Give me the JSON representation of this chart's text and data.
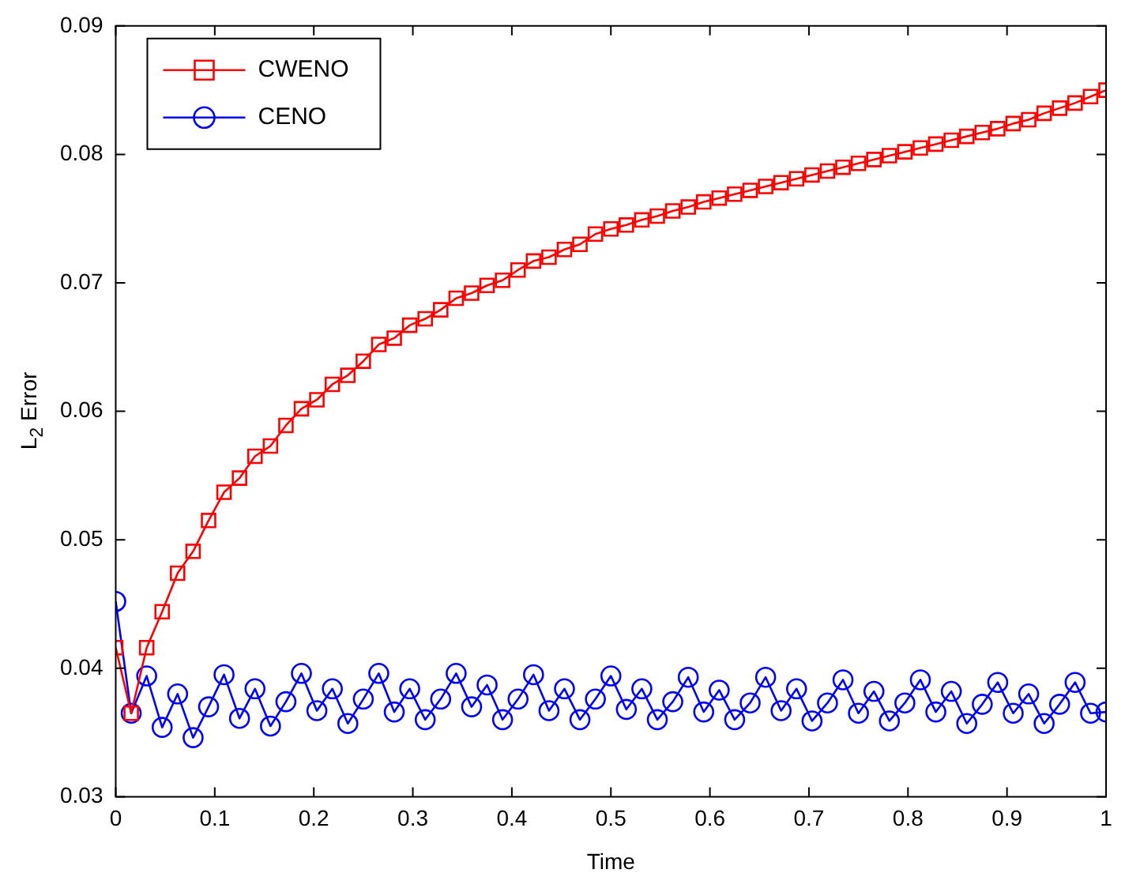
{
  "chart_data": {
    "type": "line",
    "xlabel": "Time",
    "ylabel": "L$_{2}$ Error",
    "x": [
      0,
      0.015625,
      0.03125,
      0.046875,
      0.0625,
      0.078125,
      0.09375,
      0.109375,
      0.125,
      0.140625,
      0.15625,
      0.171875,
      0.1875,
      0.203125,
      0.21875,
      0.234375,
      0.25,
      0.265625,
      0.28125,
      0.296875,
      0.3125,
      0.328125,
      0.34375,
      0.359375,
      0.375,
      0.390625,
      0.40625,
      0.421875,
      0.4375,
      0.453125,
      0.46875,
      0.484375,
      0.5,
      0.515625,
      0.53125,
      0.546875,
      0.5625,
      0.578125,
      0.59375,
      0.609375,
      0.625,
      0.640625,
      0.65625,
      0.671875,
      0.6875,
      0.703125,
      0.71875,
      0.734375,
      0.75,
      0.765625,
      0.78125,
      0.796875,
      0.8125,
      0.828125,
      0.84375,
      0.859375,
      0.875,
      0.890625,
      0.90625,
      0.921875,
      0.9375,
      0.953125,
      0.96875,
      0.984375,
      1
    ],
    "series": [
      {
        "name": "CWENO",
        "color": "#ff0000",
        "marker": "square",
        "values": [
          0.0416,
          0.0365,
          0.0416,
          0.0444,
          0.0474,
          0.0491,
          0.0515,
          0.0537,
          0.0548,
          0.0565,
          0.0573,
          0.0589,
          0.0602,
          0.0609,
          0.0621,
          0.0628,
          0.0639,
          0.0652,
          0.0657,
          0.0667,
          0.0672,
          0.0679,
          0.0688,
          0.0692,
          0.0698,
          0.0702,
          0.071,
          0.0717,
          0.072,
          0.0726,
          0.073,
          0.0738,
          0.0742,
          0.0745,
          0.0749,
          0.0752,
          0.0756,
          0.0759,
          0.0763,
          0.0766,
          0.0769,
          0.0772,
          0.0775,
          0.0778,
          0.0781,
          0.0784,
          0.0787,
          0.079,
          0.0793,
          0.0796,
          0.0799,
          0.0802,
          0.0805,
          0.0808,
          0.0811,
          0.0814,
          0.0817,
          0.082,
          0.0824,
          0.0827,
          0.0832,
          0.0836,
          0.084,
          0.0845,
          0.085
        ]
      },
      {
        "name": "CENO",
        "color": "#0000ff",
        "marker": "circle",
        "values": [
          0.0452,
          0.0365,
          0.0394,
          0.0354,
          0.038,
          0.0346,
          0.037,
          0.0395,
          0.0361,
          0.0384,
          0.0355,
          0.0374,
          0.0396,
          0.0367,
          0.0384,
          0.0357,
          0.0376,
          0.0396,
          0.0366,
          0.0384,
          0.036,
          0.0376,
          0.0396,
          0.037,
          0.0387,
          0.036,
          0.0376,
          0.0395,
          0.0367,
          0.0384,
          0.036,
          0.0376,
          0.0394,
          0.0368,
          0.0384,
          0.036,
          0.0374,
          0.0393,
          0.0366,
          0.0383,
          0.036,
          0.0373,
          0.0393,
          0.0367,
          0.0384,
          0.0359,
          0.0373,
          0.0391,
          0.0365,
          0.0382,
          0.0359,
          0.0373,
          0.0391,
          0.0366,
          0.0382,
          0.0357,
          0.0372,
          0.0389,
          0.0365,
          0.038,
          0.0357,
          0.0372,
          0.0389,
          0.0365,
          0.0366
        ]
      }
    ],
    "xlim": [
      0,
      1
    ],
    "xticks": [
      0,
      0.1,
      0.2,
      0.3,
      0.4,
      0.5,
      0.6,
      0.7,
      0.8,
      0.9,
      1
    ],
    "ylim": [
      0.03,
      0.09
    ],
    "yticks": [
      0.03,
      0.04,
      0.05,
      0.06,
      0.07,
      0.08,
      0.09
    ],
    "grid": false,
    "legend": "top left",
    "line_style": "solid"
  }
}
